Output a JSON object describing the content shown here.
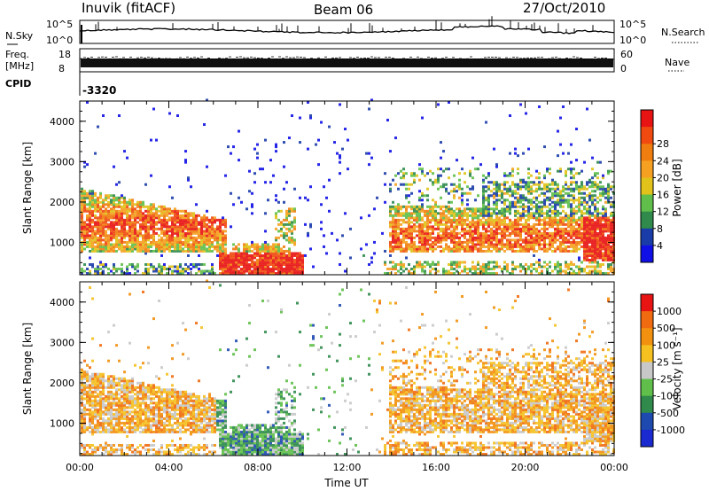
{
  "header": {
    "station": "Inuvik (fitACF)",
    "beam": "Beam 06",
    "date": "27/Oct/2010"
  },
  "nsky_panel": {
    "left_label": "N.Sky",
    "left_ticks": [
      "10^5",
      "10^0"
    ],
    "right_label": "N.Search",
    "right_ticks": [
      "10^5",
      "10^0"
    ]
  },
  "freq_panel": {
    "left_label_1": "Freq.",
    "left_label_2": "[MHz]",
    "left_ticks": [
      "18",
      "8"
    ],
    "right_label": "Nave",
    "right_ticks": [
      "60",
      "0"
    ]
  },
  "cpid": {
    "label": "CPID",
    "value": "-3320"
  },
  "colors": {
    "power_scale": [
      "#1010e6",
      "#1a3ca8",
      "#2f8a4c",
      "#5fbf4a",
      "#e0c21a",
      "#f5a020",
      "#f07d10",
      "#f04a10",
      "#e81414"
    ],
    "velocity_scale": [
      "#1a2ad0",
      "#1e4ab0",
      "#2f8a4c",
      "#5fbf4a",
      "#c8c8c8",
      "#f5c020",
      "#f29010",
      "#f06a10",
      "#e81414"
    ]
  },
  "chart_data": [
    {
      "type": "heatmap",
      "name": "power",
      "xlabel": "",
      "ylabel": "Slant Range [km]",
      "y_ticks": [
        "1000",
        "2000",
        "3000",
        "4000"
      ],
      "ylim": [
        200,
        4500
      ],
      "colorbar_label": "Power [dB]",
      "colorbar_ticks": [
        "4",
        "8",
        "12",
        "16",
        "20",
        "24",
        "28"
      ],
      "colorbar_range": [
        0,
        32
      ]
    },
    {
      "type": "heatmap",
      "name": "velocity",
      "xlabel": "Time UT",
      "ylabel": "Slant Range [km]",
      "y_ticks": [
        "1000",
        "2000",
        "3000",
        "4000"
      ],
      "ylim": [
        200,
        4500
      ],
      "x_ticks": [
        "00:00",
        "04:00",
        "08:00",
        "12:00",
        "16:00",
        "20:00",
        "00:00"
      ],
      "colorbar_label": "Velocity [m s⁻¹]",
      "colorbar_ticks": [
        "1000",
        "500",
        "100",
        "25",
        "-25",
        "-100",
        "-500",
        "-1000"
      ]
    }
  ]
}
